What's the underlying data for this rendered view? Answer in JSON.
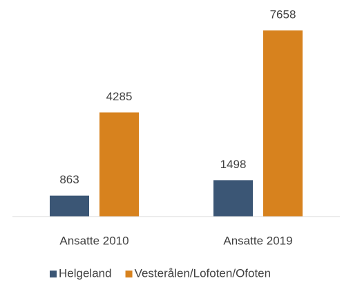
{
  "chart_data": {
    "type": "bar",
    "categories": [
      "Ansatte 2010",
      "Ansatte 2019"
    ],
    "series": [
      {
        "name": "Helgeland",
        "color": "#3b5675",
        "values": [
          863,
          1498
        ]
      },
      {
        "name": "Vesterålen/Lofoten/Ofoten",
        "color": "#d7821e",
        "values": [
          4285,
          7658
        ]
      }
    ],
    "legend": "bottom"
  }
}
